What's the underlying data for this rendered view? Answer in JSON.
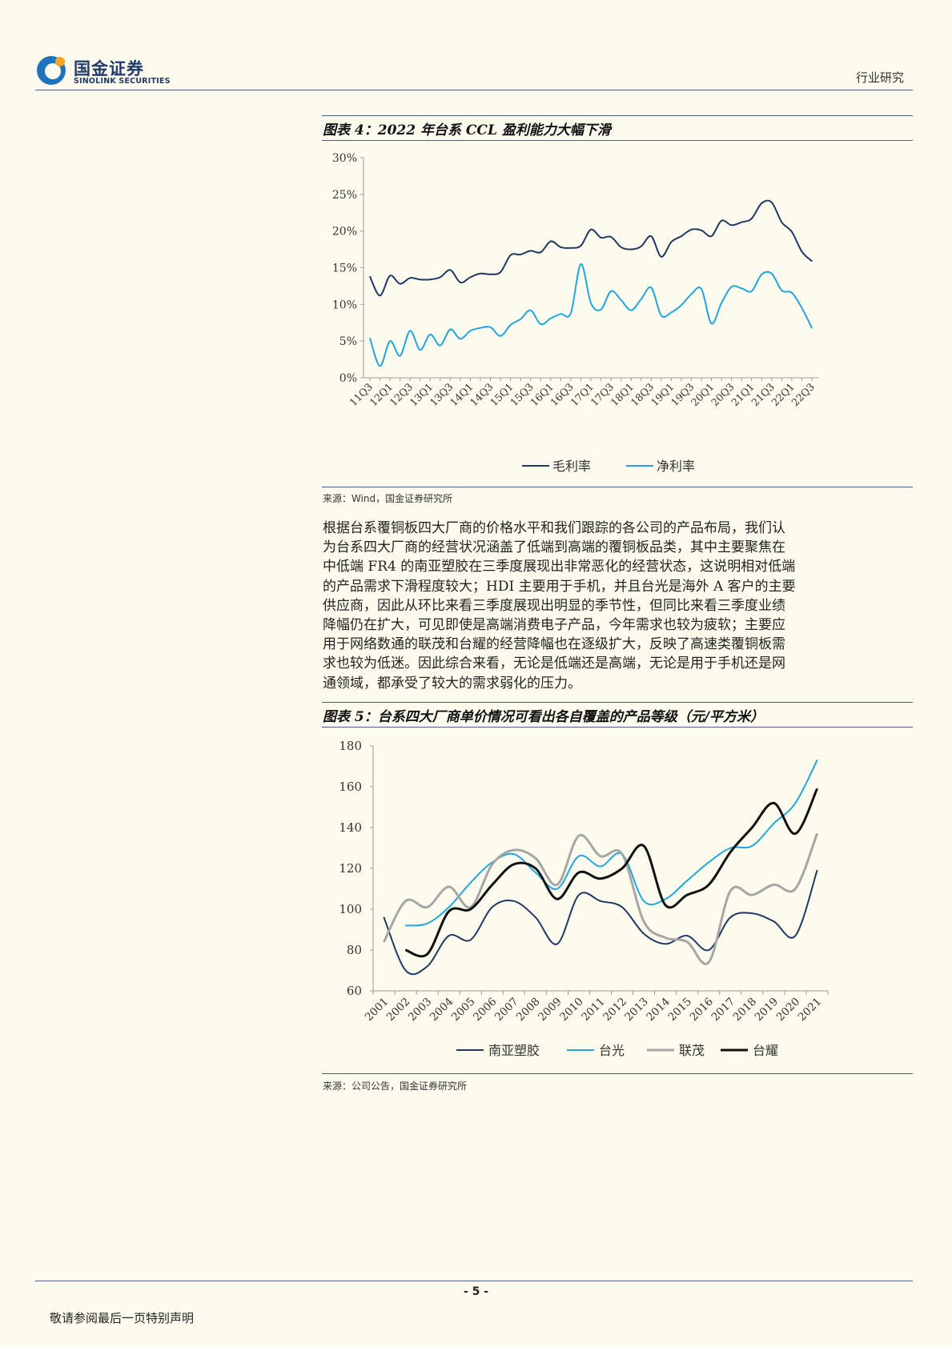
{
  "header": {
    "logo_cn": "国金证券",
    "logo_en": "SINOLINK SECURITIES",
    "section": "行业研究"
  },
  "figure4": {
    "title": "图表 4：2022 年台系 CCL 盈利能力大幅下滑",
    "source": "来源：Wind，国金证券研究所"
  },
  "figure5": {
    "title": "图表 5：台系四大厂商单价情况可看出各自覆盖的产品等级（元/平方米）",
    "source": "来源：公司公告，国金证券研究所"
  },
  "body": {
    "lines": [
      "根据台系覆铜板四大厂商的价格水平和我们跟踪的各公司的产品布局，我们认",
      "为台系四大厂商的经营状况涵盖了低端到高端的覆铜板品类，其中主要聚焦在",
      "中低端 FR4 的南亚塑胶在三季度展现出非常恶化的经营状态，这说明相对低端",
      "的产品需求下滑程度较大；HDI 主要用于手机，并且台光是海外 A 客户的主要",
      "供应商，因此从环比来看三季度展现出明显的季节性，但同比来看三季度业绩",
      "降幅仍在扩大，可见即使是高端消费电子产品，今年需求也较为疲软；主要应",
      "用于网络数通的联茂和台耀的经营降幅也在逐级扩大，反映了高速类覆铜板需",
      "求也较为低迷。因此综合来看，无论是低端还是高端，无论是用于手机还是网",
      "通领域，都承受了较大的需求弱化的压力。"
    ]
  },
  "footer": {
    "page": "- 5 -",
    "note": "敬请参阅最后一页特别声明"
  },
  "chart_data": [
    {
      "type": "line",
      "title": "2022 年台系 CCL 盈利能力大幅下滑",
      "x": [
        "11Q3",
        "11Q4",
        "12Q1",
        "12Q2",
        "12Q3",
        "12Q4",
        "13Q1",
        "13Q2",
        "13Q3",
        "13Q4",
        "14Q1",
        "14Q2",
        "14Q3",
        "14Q4",
        "15Q1",
        "15Q2",
        "15Q3",
        "15Q4",
        "16Q1",
        "16Q2",
        "16Q3",
        "16Q4",
        "17Q1",
        "17Q2",
        "17Q3",
        "17Q4",
        "18Q1",
        "18Q2",
        "18Q3",
        "18Q4",
        "19Q1",
        "19Q2",
        "19Q3",
        "19Q4",
        "20Q1",
        "20Q2",
        "20Q3",
        "20Q4",
        "21Q1",
        "21Q2",
        "21Q3",
        "21Q4",
        "22Q1",
        "22Q2",
        "22Q3"
      ],
      "tick_labels": [
        "11Q3",
        "12Q1",
        "12Q3",
        "13Q1",
        "13Q3",
        "14Q1",
        "14Q3",
        "15Q1",
        "15Q3",
        "16Q1",
        "16Q3",
        "17Q1",
        "17Q3",
        "18Q1",
        "18Q3",
        "19Q1",
        "19Q3",
        "20Q1",
        "20Q3",
        "21Q1",
        "21Q3",
        "22Q1",
        "22Q3"
      ],
      "yticks": [
        "0%",
        "5%",
        "10%",
        "15%",
        "20%",
        "25%",
        "30%"
      ],
      "ylim": [
        0,
        30
      ],
      "series": [
        {
          "name": "毛利率",
          "color": "#1f3864",
          "values": [
            13.8,
            11.2,
            13.9,
            12.8,
            13.6,
            13.4,
            13.4,
            13.7,
            14.7,
            13.0,
            13.7,
            14.2,
            14.1,
            14.4,
            16.7,
            16.8,
            17.3,
            17.1,
            18.6,
            17.8,
            17.7,
            18.0,
            20.2,
            19.1,
            19.2,
            17.8,
            17.5,
            17.9,
            19.3,
            16.5,
            18.5,
            19.3,
            20.2,
            20.1,
            19.3,
            21.4,
            20.8,
            21.2,
            21.7,
            23.8,
            23.9,
            21.2,
            19.9,
            17.2,
            15.9
          ]
        },
        {
          "name": "净利率",
          "color": "#22a6e0",
          "values": [
            5.4,
            1.6,
            5.0,
            3.0,
            6.4,
            3.8,
            5.9,
            4.4,
            6.6,
            5.3,
            6.4,
            6.8,
            6.9,
            5.7,
            7.2,
            8.0,
            9.2,
            7.3,
            8.1,
            8.7,
            8.8,
            15.5,
            10.2,
            9.3,
            11.8,
            10.6,
            9.2,
            10.7,
            12.3,
            8.5,
            8.9,
            9.9,
            11.4,
            12.1,
            7.4,
            10.2,
            12.4,
            12.2,
            11.8,
            14.1,
            14.2,
            11.9,
            11.6,
            9.5,
            6.8
          ]
        }
      ],
      "legend": "bottom"
    },
    {
      "type": "line",
      "title": "台系四大厂商单价情况可看出各自覆盖的产品等级（元/平方米）",
      "categories": [
        "2001",
        "2002",
        "2003",
        "2004",
        "2005",
        "2006",
        "2007",
        "2008",
        "2009",
        "2010",
        "2011",
        "2012",
        "2013",
        "2014",
        "2015",
        "2016",
        "2017",
        "2018",
        "2019",
        "2020",
        "2021"
      ],
      "yticks": [
        "60",
        "80",
        "100",
        "120",
        "140",
        "160",
        "180"
      ],
      "ylim": [
        60,
        180
      ],
      "series": [
        {
          "name": "南亚塑胶",
          "color": "#1f3864",
          "width": 2,
          "values": [
            96,
            70,
            72,
            87,
            85,
            101,
            104,
            96,
            83,
            107,
            104,
            101,
            88,
            83,
            87,
            80,
            96,
            98,
            94,
            87,
            119
          ]
        },
        {
          "name": "台光",
          "color": "#22a6e0",
          "width": 2,
          "values": [
            null,
            92,
            93,
            101,
            113,
            123,
            127,
            118,
            110,
            126,
            121,
            127,
            104,
            105,
            114,
            123,
            130,
            131,
            142,
            152,
            173
          ]
        },
        {
          "name": "联茂",
          "color": "#a6a6a6",
          "width": 3,
          "values": [
            84,
            104,
            101,
            111,
            101,
            122,
            129,
            125,
            112,
            136,
            126,
            127,
            94,
            86,
            84,
            74,
            109,
            107,
            112,
            110,
            137
          ]
        },
        {
          "name": "台耀",
          "color": "#111111",
          "width": 3,
          "values": [
            null,
            80,
            78,
            99,
            100,
            112,
            122,
            120,
            105,
            118,
            115,
            120,
            131,
            102,
            107,
            112,
            128,
            140,
            152,
            137,
            159
          ]
        }
      ],
      "legend": "bottom"
    }
  ]
}
